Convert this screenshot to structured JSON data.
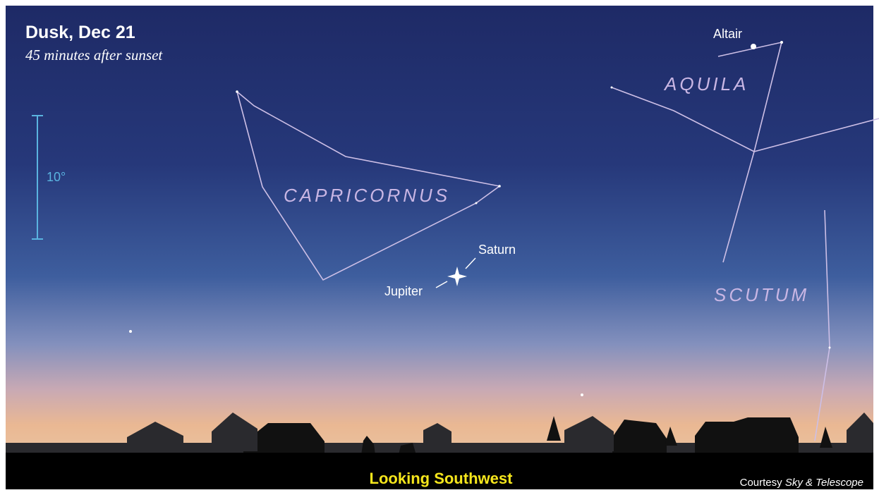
{
  "header": {
    "title": "Dusk, Dec 21",
    "subtitle": "45 minutes after sunset"
  },
  "scale": {
    "label": "10°"
  },
  "constellations": [
    "CAPRICORNUS",
    "AQUILA",
    "SCUTUM"
  ],
  "objects": [
    "Altair",
    "Saturn",
    "Jupiter"
  ],
  "footer": {
    "direction": "Looking Southwest",
    "credit_prefix": "Courtesy",
    "credit_publication": "Sky & Telescope"
  }
}
